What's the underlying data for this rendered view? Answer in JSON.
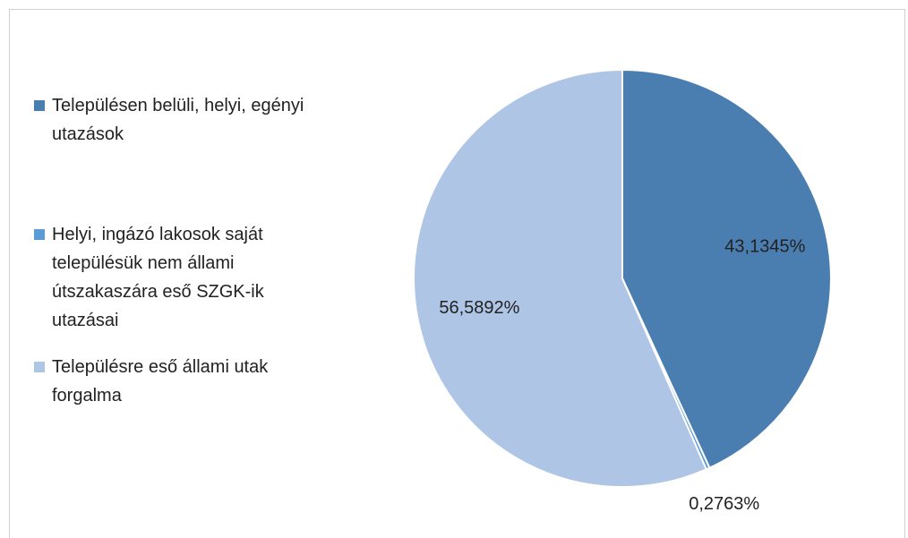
{
  "chart_data": {
    "type": "pie",
    "categories": [
      "Településen belüli, helyi, egényi utazások",
      "Helyi, ingázó lakosok saját településük nem állami útszakaszára eső SZGK-ik utazásai",
      "Településre eső állami utak forgalma"
    ],
    "values": [
      43.1345,
      0.2763,
      56.5892
    ],
    "value_labels": [
      "43,1345%",
      "0,2763%",
      "56,5892%"
    ],
    "colors": [
      "#4a7eb1",
      "#5b9bd5",
      "#aec5e5"
    ],
    "legend": "left"
  }
}
